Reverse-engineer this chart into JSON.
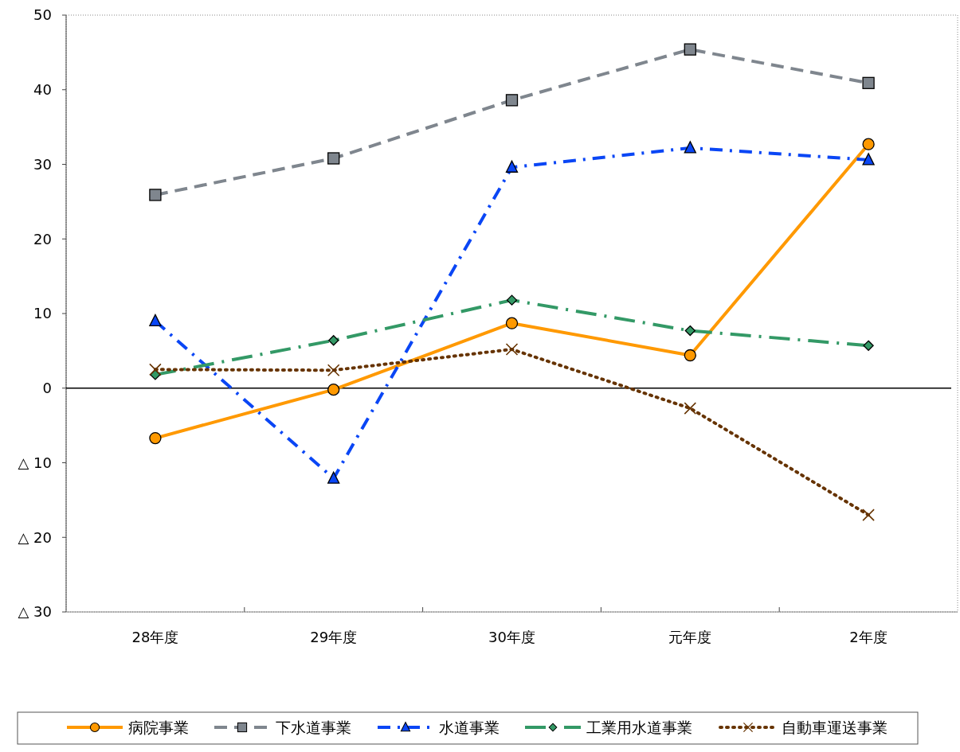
{
  "chart_data": {
    "type": "line",
    "categories": [
      "28年度",
      "29年度",
      "30年度",
      "元年度",
      "2年度"
    ],
    "ylim": [
      -30,
      50
    ],
    "yticks": [
      {
        "value": -30,
        "label": "△ 30"
      },
      {
        "value": -20,
        "label": "△ 20"
      },
      {
        "value": -10,
        "label": "△ 10"
      },
      0,
      10,
      20,
      30,
      40,
      50
    ],
    "ref_lines": [
      {
        "axis": "y",
        "value": 0,
        "color": "#000000"
      }
    ],
    "legend": "bottom",
    "series": [
      {
        "name": "病院事業",
        "color": "#ff9900",
        "marker": "circle",
        "line_style": "solid",
        "values": [
          -6.7,
          -0.2,
          8.7,
          4.4,
          32.7
        ]
      },
      {
        "name": "下水道事業",
        "color": "#7f868e",
        "marker": "square",
        "line_style": "dashed",
        "values": [
          25.9,
          30.8,
          38.6,
          45.4,
          40.9
        ]
      },
      {
        "name": "水道事業",
        "color": "#0a46f5",
        "marker": "triangle",
        "line_style": "dashdot",
        "values": [
          9.0,
          -12.1,
          29.6,
          32.2,
          30.6
        ]
      },
      {
        "name": "工業用水道事業",
        "color": "#339966",
        "marker": "diamond",
        "line_style": "longdashdot",
        "values": [
          1.8,
          6.4,
          11.8,
          7.7,
          5.7
        ]
      },
      {
        "name": "自動車運送事業",
        "color": "#663300",
        "marker": "cross",
        "line_style": "dotted",
        "values": [
          2.5,
          2.4,
          5.2,
          -2.7,
          -17.0
        ]
      }
    ]
  }
}
